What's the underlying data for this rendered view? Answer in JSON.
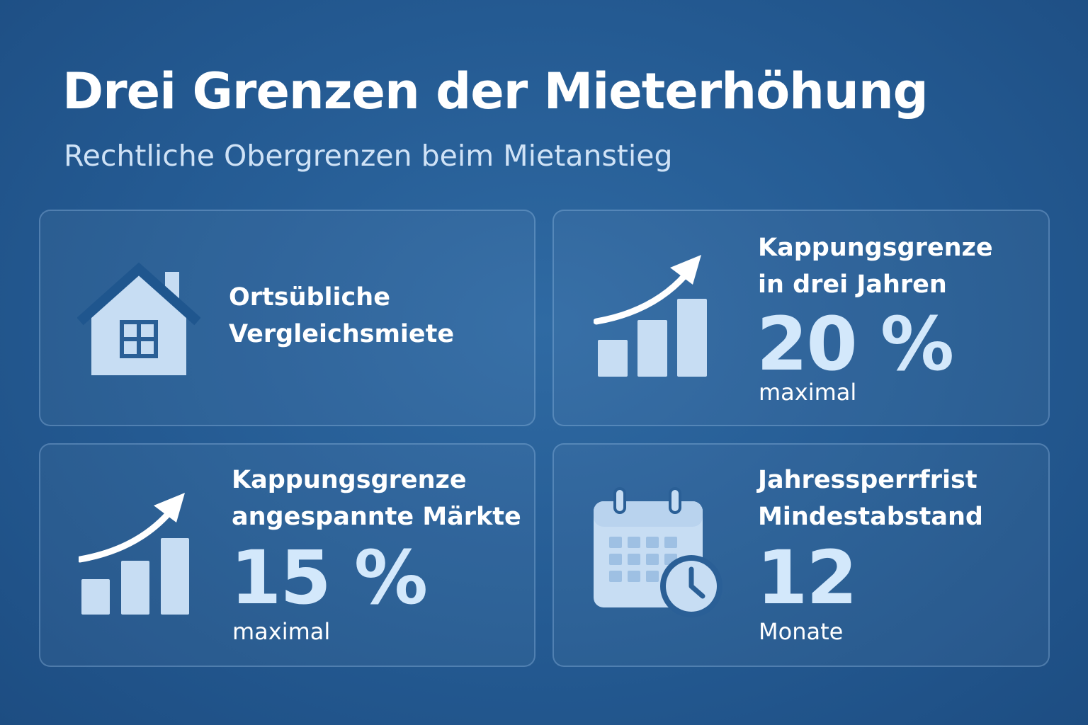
{
  "header": {
    "title": "Drei Grenzen der Mieterhöhung",
    "subtitle": "Rechtliche Obergrenzen beim Mietanstieg"
  },
  "cards": [
    {
      "icon": "house-icon",
      "label_line1": "Ortsübliche",
      "label_line2": "Vergleichsmiete"
    },
    {
      "icon": "growth-chart-icon",
      "label_line1": "Kappungsgrenze",
      "label_line2": "in drei Jahren",
      "value": "20 %",
      "value_caption": "maximal"
    },
    {
      "icon": "growth-chart-icon",
      "label_line1": "Kappungsgrenze",
      "label_line2": "angespannte Märkte",
      "value": "15 %",
      "value_caption": "maximal"
    },
    {
      "icon": "calendar-clock-icon",
      "label_line1": "Jahressperrfrist",
      "label_line2": "Mindestabstand",
      "value": "12",
      "value_caption": "Monate"
    }
  ],
  "colors": {
    "background": "#245a92",
    "icon_fill": "#c7ddf3",
    "value_text": "#d3e8fb"
  }
}
